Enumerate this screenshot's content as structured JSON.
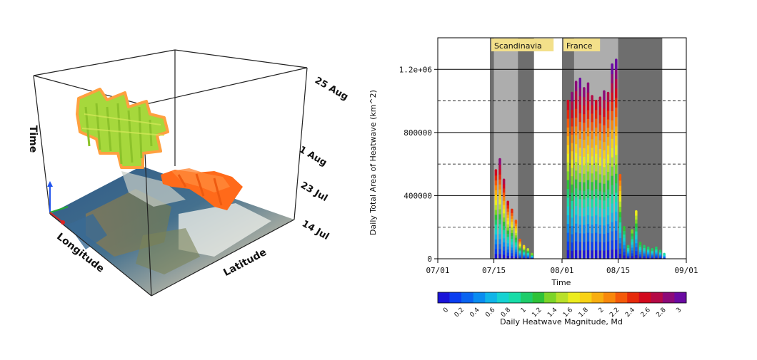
{
  "cube": {
    "time_axis_label": "Time",
    "longitude_label": "Longitude",
    "latitude_label": "Latitude",
    "time_ticks": [
      "25 Aug",
      "1 Aug",
      "23 Jul",
      "14 Jul"
    ],
    "event_colors": {
      "scandinavia": "#a6d83c",
      "france": "#ff6a1a",
      "outline": "#ffa040"
    }
  },
  "chart_data": {
    "type": "bar",
    "title": "",
    "xlabel": "Time",
    "ylabel": "Daily Total Area of Heatwave (km^2)",
    "x_type": "date",
    "xlim": [
      "2018-07-01",
      "2018-09-01"
    ],
    "x_ticks": [
      "07/01",
      "07/15",
      "08/01",
      "08/15",
      "09/01"
    ],
    "ylim": [
      0,
      1400000
    ],
    "y_ticks": [
      0,
      400000,
      800000,
      1200000
    ],
    "y_tick_labels": [
      "0",
      "400000",
      "800000",
      "1.2e+06"
    ],
    "dashed_gridlines": [
      200000,
      600000,
      1000000
    ],
    "grid": true,
    "periods": [
      {
        "label": "Scandinavia",
        "dark_start": "2018-07-14",
        "light_start": "2018-07-15",
        "light_end": "2018-07-21",
        "dark_end": "2018-07-25"
      },
      {
        "label": "France",
        "dark_start": "2018-08-01",
        "light_start": "2018-08-04",
        "light_end": "2018-08-15",
        "dark_end": "2018-08-26"
      }
    ],
    "series": [
      {
        "x": [
          "2018-07-15",
          "2018-07-16",
          "2018-07-17",
          "2018-07-18",
          "2018-07-19",
          "2018-07-20",
          "2018-07-21",
          "2018-07-22",
          "2018-07-23",
          "2018-07-24"
        ],
        "values": [
          560000,
          630000,
          500000,
          360000,
          310000,
          240000,
          120000,
          80000,
          60000,
          30000
        ],
        "max_magnitude": [
          2.6,
          2.8,
          2.7,
          2.6,
          2.4,
          2.2,
          2.3,
          1.8,
          1.5,
          1.4
        ]
      },
      {
        "x": [
          "2018-08-02",
          "2018-08-03",
          "2018-08-04",
          "2018-08-05",
          "2018-08-06",
          "2018-08-07",
          "2018-08-08",
          "2018-08-09",
          "2018-08-10",
          "2018-08-11",
          "2018-08-12",
          "2018-08-13",
          "2018-08-14",
          "2018-08-15",
          "2018-08-16",
          "2018-08-17",
          "2018-08-18",
          "2018-08-19",
          "2018-08-20",
          "2018-08-21",
          "2018-08-22",
          "2018-08-23",
          "2018-08-24",
          "2018-08-25",
          "2018-08-26"
        ],
        "values": [
          1000000,
          1050000,
          1120000,
          1140000,
          1080000,
          1110000,
          1030000,
          1000000,
          1020000,
          1060000,
          1050000,
          1230000,
          1260000,
          530000,
          200000,
          80000,
          180000,
          300000,
          100000,
          80000,
          70000,
          60000,
          70000,
          50000,
          30000
        ],
        "max_magnitude": [
          2.6,
          2.8,
          2.9,
          3.0,
          2.8,
          2.9,
          2.7,
          2.5,
          2.7,
          2.8,
          2.7,
          3.0,
          3.0,
          2.3,
          1.2,
          1.0,
          1.3,
          1.7,
          1.2,
          1.1,
          1.0,
          1.0,
          1.1,
          1.0,
          0.9
        ]
      }
    ],
    "colorbar": {
      "label": "Daily Heatwave Magnitude, Md",
      "ticks": [
        "0",
        "0.2",
        "0.4",
        "0.6",
        "0.8",
        "1",
        "1.2",
        "1.4",
        "1.6",
        "1.8",
        "2",
        "2.2",
        "2.4",
        "2.6",
        "2.8",
        "3"
      ],
      "colors": [
        "#1a14d8",
        "#0a3ef0",
        "#0a64f0",
        "#0a8cf0",
        "#10b4e8",
        "#16d2d2",
        "#18dca8",
        "#1ecc6a",
        "#2ec238",
        "#7cd428",
        "#b8e02a",
        "#ecec1e",
        "#f8d216",
        "#f8ae10",
        "#f8880c",
        "#f45a0a",
        "#e62a0a",
        "#d20a1e",
        "#b40a46",
        "#8c0a78",
        "#6a0aa2"
      ]
    }
  }
}
